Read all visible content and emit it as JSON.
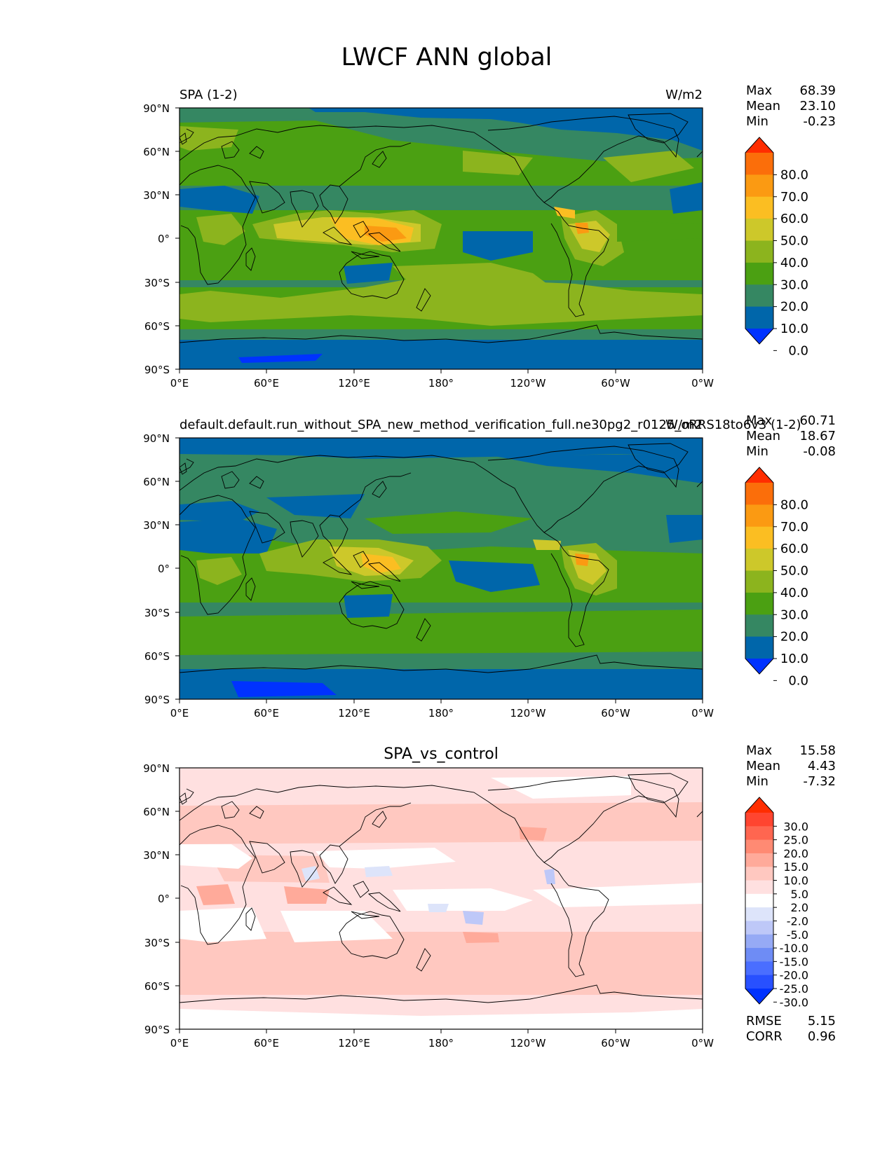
{
  "title": "LWCF ANN global",
  "lat_ticks": [
    "90°N",
    "60°N",
    "30°N",
    "0°",
    "30°S",
    "60°S",
    "90°S"
  ],
  "lon_ticks": [
    "0°E",
    "60°E",
    "120°E",
    "180°",
    "120°W",
    "60°W",
    "0°W"
  ],
  "colors": {
    "main_levels": [
      "#0032ff",
      "#0066aa",
      "#358762",
      "#4ba012",
      "#8cb41e",
      "#cdc82a",
      "#fbbe22",
      "#fb9a12",
      "#fb6e0a",
      "#ff2d00"
    ],
    "diff_levels": [
      "#0032ff",
      "#2850ff",
      "#4a6eff",
      "#6e8cf5",
      "#96aaf5",
      "#bec8f8",
      "#dde4fa",
      "#ffffff",
      "#ffe0e0",
      "#ffc8c0",
      "#ffaa9a",
      "#ff8a73",
      "#ff6650",
      "#ff4530",
      "#ff2d00"
    ],
    "coast": "#000000"
  },
  "chart_data": [
    {
      "type": "heatmap",
      "panel_title": "SPA (1-2)",
      "units": "W/m2",
      "stats": {
        "max_label": "Max",
        "max": "68.39",
        "mean_label": "Mean",
        "mean": "23.10",
        "min_label": "Min",
        "min": "-0.23"
      },
      "colorbar_ticks": [
        "80.0",
        "70.0",
        "60.0",
        "50.0",
        "40.0",
        "30.0",
        "20.0",
        "10.0",
        "0.0"
      ],
      "colorbar_bounds": [
        0,
        10,
        20,
        30,
        40,
        50,
        60,
        70,
        80
      ],
      "xlim": [
        0,
        360
      ],
      "ylim": [
        -90,
        90
      ]
    },
    {
      "type": "heatmap",
      "panel_title": "default.default.run_without_SPA_new_method_verification_full.ne30pg2_r0125_oRRS18to6v3 (1-2)",
      "units": "W/m2",
      "stats": {
        "max_label": "Max",
        "max": "60.71",
        "mean_label": "Mean",
        "mean": "18.67",
        "min_label": "Min",
        "min": "-0.08"
      },
      "colorbar_ticks": [
        "80.0",
        "70.0",
        "60.0",
        "50.0",
        "40.0",
        "30.0",
        "20.0",
        "10.0",
        "0.0"
      ],
      "colorbar_bounds": [
        0,
        10,
        20,
        30,
        40,
        50,
        60,
        70,
        80
      ],
      "xlim": [
        0,
        360
      ],
      "ylim": [
        -90,
        90
      ]
    },
    {
      "type": "heatmap",
      "panel_title": "SPA_vs_control",
      "units": "",
      "stats": {
        "max_label": "Max",
        "max": "15.58",
        "mean_label": "Mean",
        "mean": "4.43",
        "min_label": "Min",
        "min": "-7.32"
      },
      "colorbar_ticks": [
        "30.0",
        "25.0",
        "20.0",
        "15.0",
        "10.0",
        "5.0",
        "2.0",
        "-2.0",
        "-5.0",
        "-10.0",
        "-15.0",
        "-20.0",
        "-25.0",
        "-30.0"
      ],
      "colorbar_bounds": [
        -30,
        -25,
        -20,
        -15,
        -10,
        -5,
        -2,
        2,
        5,
        10,
        15,
        20,
        25,
        30
      ],
      "error_stats": {
        "rmse_label": "RMSE",
        "rmse": "5.15",
        "corr_label": "CORR",
        "corr": "0.96"
      },
      "xlim": [
        0,
        360
      ],
      "ylim": [
        -90,
        90
      ]
    }
  ]
}
